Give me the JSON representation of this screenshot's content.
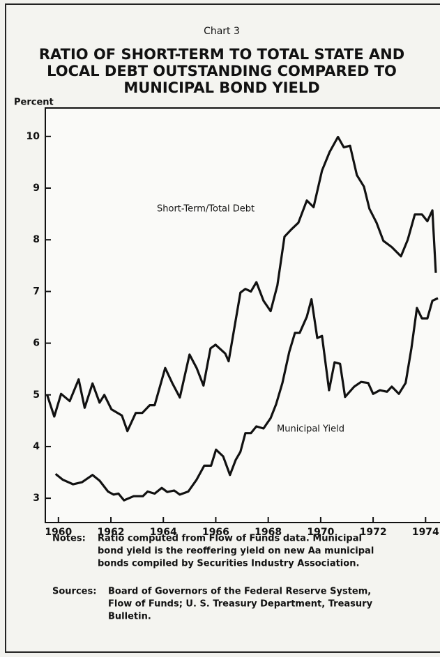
{
  "chart_data": {
    "type": "line",
    "kicker": "Chart 3",
    "title_lines": [
      "RATIO OF SHORT-TERM TO TOTAL STATE AND",
      "LOCAL DEBT OUTSTANDING COMPARED TO",
      "MUNICIPAL BOND YIELD"
    ],
    "y_label": "Percent",
    "xlim": [
      1959.5,
      1974.55
    ],
    "xticks": [
      1960,
      1962,
      1964,
      1966,
      1968,
      1970,
      1972,
      1974
    ],
    "ylim": [
      2.53,
      10.55
    ],
    "yticks": [
      3,
      4,
      5,
      6,
      7,
      8,
      9,
      10
    ],
    "series": [
      {
        "name": "Short-Term/Total Debt",
        "color": "#111111",
        "x": [
          1959.57,
          1959.84,
          1960.1,
          1960.43,
          1960.77,
          1961.0,
          1961.3,
          1961.57,
          1961.75,
          1962.02,
          1962.42,
          1962.63,
          1962.95,
          1963.2,
          1963.48,
          1963.67,
          1964.07,
          1964.34,
          1964.63,
          1965.0,
          1965.27,
          1965.53,
          1965.8,
          1965.99,
          1966.36,
          1966.49,
          1966.94,
          1967.13,
          1967.34,
          1967.55,
          1967.82,
          1968.09,
          1968.35,
          1968.62,
          1968.88,
          1969.15,
          1969.47,
          1969.73,
          1970.05,
          1970.34,
          1970.66,
          1970.88,
          1971.12,
          1971.38,
          1971.65,
          1971.86,
          1972.13,
          1972.39,
          1972.71,
          1973.06,
          1973.32,
          1973.59,
          1973.86,
          1974.07,
          1974.26,
          1974.39
        ],
        "values": [
          5.0,
          4.58,
          5.02,
          4.88,
          5.3,
          4.75,
          5.22,
          4.85,
          5.0,
          4.72,
          4.6,
          4.3,
          4.65,
          4.65,
          4.8,
          4.8,
          5.52,
          5.23,
          4.95,
          5.78,
          5.52,
          5.18,
          5.9,
          5.97,
          5.8,
          5.65,
          6.98,
          7.05,
          7.0,
          7.18,
          6.82,
          6.62,
          7.12,
          8.06,
          8.2,
          8.33,
          8.76,
          8.63,
          9.34,
          9.7,
          9.99,
          9.79,
          9.82,
          9.25,
          9.03,
          8.6,
          8.33,
          7.98,
          7.86,
          7.68,
          8.0,
          8.49,
          8.49,
          8.36,
          8.57,
          7.36
        ]
      },
      {
        "name": "Municipal Yield",
        "color": "#111111",
        "x": [
          1959.89,
          1960.16,
          1960.56,
          1960.9,
          1961.3,
          1961.57,
          1961.89,
          1962.1,
          1962.29,
          1962.5,
          1962.87,
          1963.22,
          1963.4,
          1963.67,
          1963.94,
          1964.15,
          1964.41,
          1964.63,
          1964.95,
          1965.27,
          1965.56,
          1965.82,
          1966.01,
          1966.28,
          1966.54,
          1966.76,
          1966.94,
          1967.13,
          1967.34,
          1967.55,
          1967.82,
          1968.09,
          1968.3,
          1968.54,
          1968.8,
          1969.02,
          1969.2,
          1969.47,
          1969.65,
          1969.87,
          1970.05,
          1970.32,
          1970.53,
          1970.74,
          1970.93,
          1971.28,
          1971.54,
          1971.81,
          1972.0,
          1972.26,
          1972.53,
          1972.71,
          1972.98,
          1973.24,
          1973.46,
          1973.67,
          1973.86,
          1974.07,
          1974.26,
          1974.47
        ],
        "values": [
          3.47,
          3.36,
          3.27,
          3.31,
          3.45,
          3.34,
          3.13,
          3.07,
          3.09,
          2.96,
          3.04,
          3.04,
          3.13,
          3.09,
          3.2,
          3.12,
          3.15,
          3.07,
          3.13,
          3.36,
          3.63,
          3.63,
          3.94,
          3.81,
          3.45,
          3.74,
          3.9,
          4.26,
          4.26,
          4.39,
          4.35,
          4.55,
          4.82,
          5.23,
          5.83,
          6.2,
          6.2,
          6.51,
          6.85,
          6.1,
          6.14,
          5.09,
          5.63,
          5.6,
          4.96,
          5.16,
          5.25,
          5.23,
          5.02,
          5.09,
          5.06,
          5.16,
          5.02,
          5.23,
          5.9,
          6.68,
          6.48,
          6.48,
          6.82,
          6.87
        ]
      }
    ],
    "notes_label": "Notes:",
    "notes": [
      "Ratio computed from Flow of Funds data. Municipal",
      "bond yield is the reoffering yield on new Aa municipal",
      "bonds compiled by Securities Industry Association."
    ],
    "sources_label": "Sources:",
    "sources": [
      "Board of Governors of the Federal Reserve System,",
      "Flow of Funds; U. S. Treasury Department, Treasury",
      "Bulletin."
    ]
  }
}
